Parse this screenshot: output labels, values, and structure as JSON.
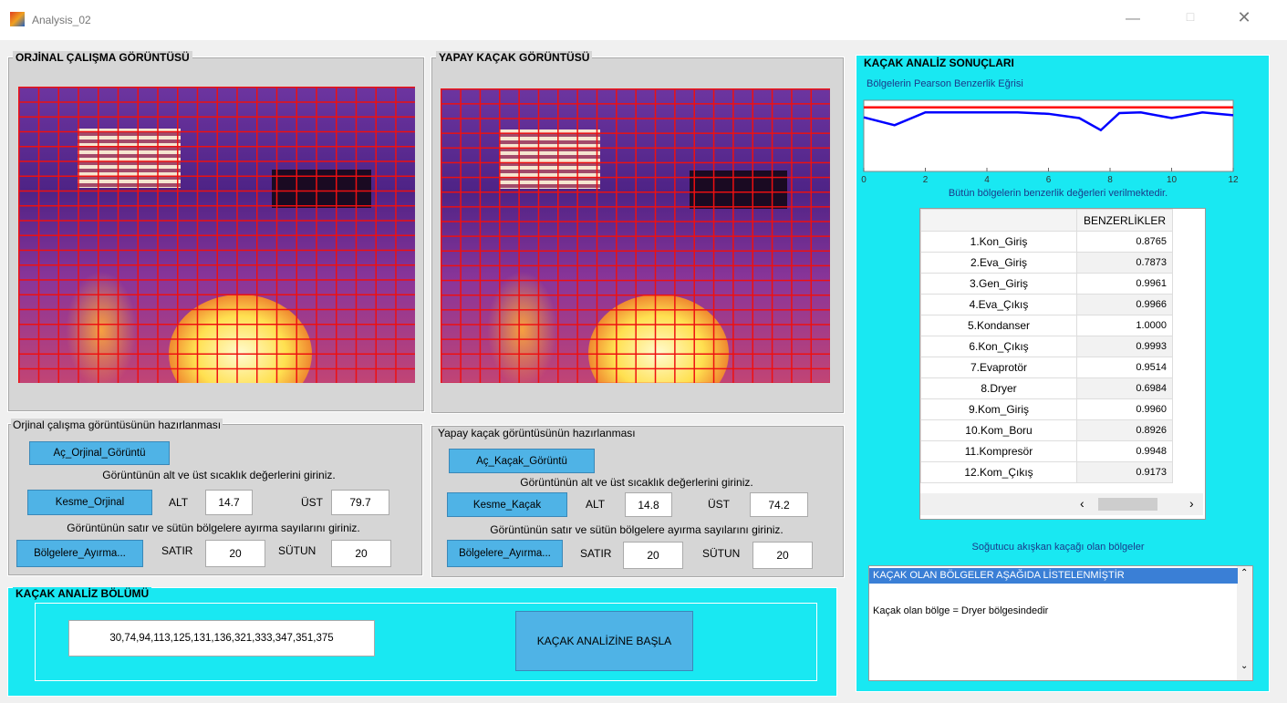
{
  "window": {
    "title": "Analysis_02"
  },
  "original_panel": {
    "title": "ORJİNAL ÇALIŞMA GÖRÜNTÜSÜ"
  },
  "artificial_panel": {
    "title": "YAPAY KAÇAK GÖRÜNTÜSÜ"
  },
  "original_prep": {
    "title": "Orjinal çalışma görüntüsünün hazırlanması",
    "open_button": "Aç_Orjinal_Görüntü",
    "instruction_1": "Görüntünün alt ve üst sıcaklık değerlerini giriniz.",
    "cut_button": "Kesme_Orjinal",
    "alt_label": "ALT",
    "alt_value": "14.7",
    "ust_label": "ÜST",
    "ust_value": "79.7",
    "instruction_2": "Görüntünün satır ve sütün bölgelere ayırma sayılarını giriniz.",
    "split_button": "Bölgelere_Ayırma...",
    "row_label": "SATIR",
    "row_value": "20",
    "col_label": "SÜTUN",
    "col_value": "20"
  },
  "artificial_prep": {
    "title": "Yapay kaçak görüntüsünün hazırlanması",
    "open_button": "Aç_Kaçak_Görüntü",
    "instruction_1": "Görüntünün alt ve üst sıcaklık değerlerini giriniz.",
    "cut_button": "Kesme_Kaçak",
    "alt_label": "ALT",
    "alt_value": "14.8",
    "ust_label": "ÜST",
    "ust_value": "74.2",
    "instruction_2": "Görüntünün satır ve sütün bölgelere ayırma sayılarını giriniz.",
    "split_button": "Bölgelere_Ayırma...",
    "row_label": "SATIR",
    "row_value": "20",
    "col_label": "SÜTUN",
    "col_value": "20"
  },
  "analysis_panel": {
    "title": "KAÇAK ANALİZ BÖLÜMÜ",
    "regions_field": "30,74,94,113,125,131,136,321,333,347,351,375",
    "start_button": "KAÇAK ANALİZİNE BAŞLA"
  },
  "results_panel": {
    "title": "KAÇAK ANALİZ SONUÇLARI",
    "plot": {
      "type": "line",
      "title": "Bölgelerin Pearson Benzerlik Eğrisi",
      "x": [
        0,
        1,
        2,
        3,
        4,
        5,
        6,
        7,
        7.7,
        8.3,
        9,
        10,
        11,
        12
      ],
      "series": [
        {
          "color": "#ff0000",
          "values": [
            0.9,
            0.9,
            0.9,
            0.9,
            0.9,
            0.9,
            0.9,
            0.9,
            0.9,
            0.9,
            0.9,
            0.9,
            0.9,
            0.9
          ]
        },
        {
          "color": "#0000ff",
          "values": [
            0.76,
            0.65,
            0.83,
            0.83,
            0.83,
            0.83,
            0.81,
            0.75,
            0.58,
            0.82,
            0.83,
            0.75,
            0.83,
            0.79
          ]
        }
      ],
      "xlim": [
        0,
        12
      ],
      "xticks": [
        0,
        2,
        4,
        6,
        8,
        10,
        12
      ],
      "ylim": [
        0,
        1
      ]
    },
    "table_caption": "Bütün bölgelerin benzerlik değerleri verilmektedir.",
    "table": {
      "header": "BENZERLİKLER",
      "rows": [
        [
          "1.Kon_Giriş",
          "0.8765"
        ],
        [
          "2.Eva_Giriş",
          "0.7873"
        ],
        [
          "3.Gen_Giriş",
          "0.9961"
        ],
        [
          "4.Eva_Çıkış",
          "0.9966"
        ],
        [
          "5.Kondanser",
          "1.0000"
        ],
        [
          "6.Kon_Çıkış",
          "0.9993"
        ],
        [
          "7.Evaprotör",
          "0.9514"
        ],
        [
          "8.Dryer",
          "0.6984"
        ],
        [
          "9.Kom_Giriş",
          "0.9960"
        ],
        [
          "10.Kom_Boru",
          "0.8926"
        ],
        [
          "11.Kompresör",
          "0.9948"
        ],
        [
          "12.Kom_Çıkış",
          "0.9173"
        ]
      ]
    },
    "leak_caption": "Soğutucu akışkan kaçağı olan bölgeler",
    "listbox": {
      "items": [
        "KAÇAK OLAN BÖLGELER AŞAĞIDA LİSTELENMİŞTİR",
        "Kaçak olan bölge = Dryer bölgesindedir"
      ]
    }
  }
}
